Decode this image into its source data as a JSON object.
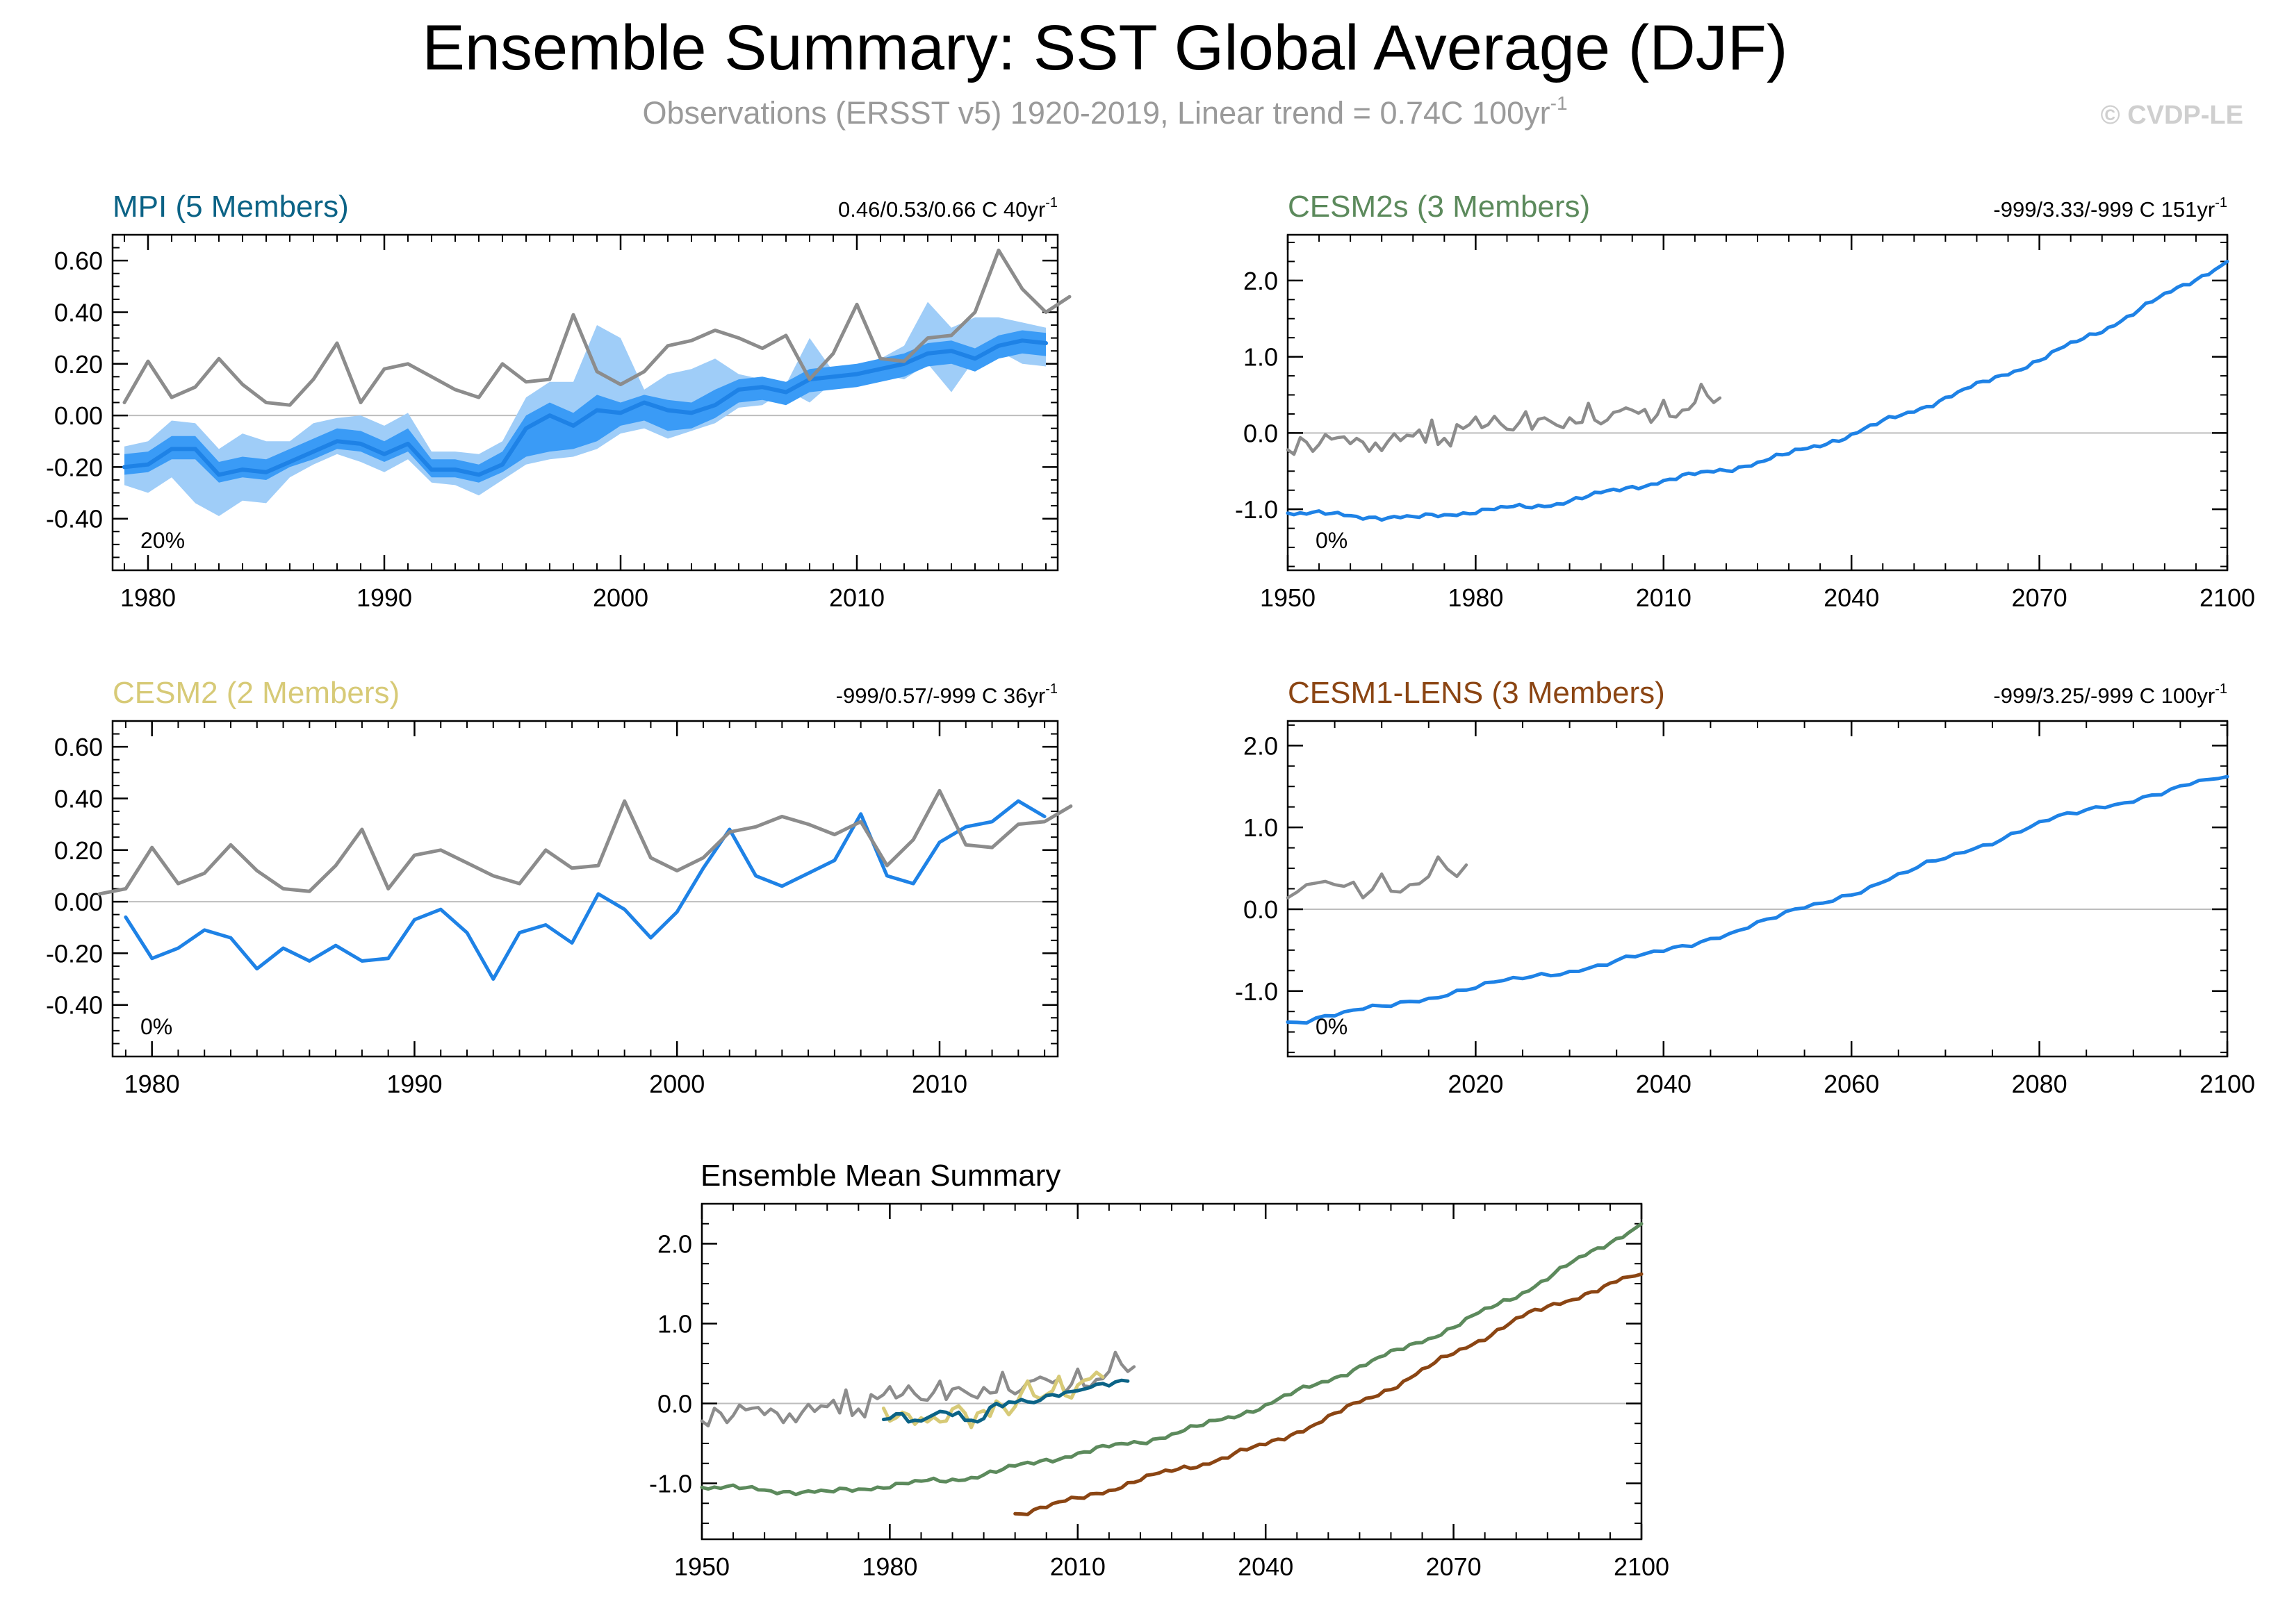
{
  "figure": {
    "title": "Ensemble Summary: SST Global Average (DJF)",
    "subtitle_main": "Observations (ERSST v5) 1920-2019, Linear trend = 0.74C 100yr",
    "subtitle_sup": "-1",
    "copyright": "© CVDP-LE"
  },
  "colors": {
    "obs": "#8c8c8c",
    "model_line": "#1e82e6",
    "band_inner": "#3a9bf6",
    "band_outer": "#9fcdf8",
    "MPI": "#0b6386",
    "CESM2s": "#5c8a5c",
    "CESM2": "#d7ca77",
    "CESM1-LENS": "#8b4513"
  },
  "chart_data": [
    {
      "id": "mpi",
      "type": "line",
      "title": "MPI (5 Members)",
      "title_color": "#0b6386",
      "trend_main": "0.46/0.53/0.66 C 40yr",
      "trend_sup": "-1",
      "percent_label": "20%",
      "xlim": [
        1978.5,
        2018.5
      ],
      "ylim": [
        -0.6,
        0.7
      ],
      "xticks": [
        1980,
        1990,
        2000,
        2010
      ],
      "yticks": [
        -0.4,
        -0.2,
        0.0,
        0.2,
        0.4,
        0.6
      ],
      "ytick_labels": [
        "-0.40",
        "-0.20",
        "0.00",
        "0.20",
        "0.40",
        "0.60"
      ],
      "obs": {
        "start": 1979,
        "values": [
          0.05,
          0.21,
          0.07,
          0.11,
          0.22,
          0.12,
          0.05,
          0.04,
          0.14,
          0.28,
          0.05,
          0.18,
          0.2,
          0.15,
          0.1,
          0.07,
          0.2,
          0.13,
          0.14,
          0.39,
          0.17,
          0.12,
          0.17,
          0.27,
          0.29,
          0.33,
          0.3,
          0.26,
          0.31,
          0.14,
          0.24,
          0.43,
          0.22,
          0.21,
          0.3,
          0.31,
          0.4,
          0.64,
          0.49,
          0.4,
          0.46
        ]
      },
      "model": {
        "start": 1979,
        "end": 2018,
        "mean": [
          -0.2,
          -0.19,
          -0.13,
          -0.13,
          -0.23,
          -0.21,
          -0.22,
          -0.18,
          -0.14,
          -0.1,
          -0.11,
          -0.15,
          -0.11,
          -0.21,
          -0.21,
          -0.23,
          -0.19,
          -0.05,
          0.0,
          -0.04,
          0.02,
          0.01,
          0.05,
          0.02,
          0.01,
          0.04,
          0.1,
          0.11,
          0.09,
          0.14,
          0.15,
          0.16,
          0.18,
          0.2,
          0.24,
          0.25,
          0.22,
          0.27,
          0.29,
          0.28
        ],
        "min_inner": [
          -0.23,
          -0.22,
          -0.17,
          -0.17,
          -0.26,
          -0.24,
          -0.25,
          -0.2,
          -0.17,
          -0.13,
          -0.14,
          -0.18,
          -0.14,
          -0.24,
          -0.24,
          -0.26,
          -0.22,
          -0.16,
          -0.14,
          -0.13,
          -0.1,
          -0.04,
          -0.02,
          -0.06,
          -0.05,
          -0.01,
          0.05,
          0.06,
          0.04,
          0.09,
          0.1,
          0.11,
          0.13,
          0.15,
          0.19,
          0.2,
          0.17,
          0.22,
          0.24,
          0.23
        ],
        "max_inner": [
          -0.15,
          -0.14,
          -0.08,
          -0.08,
          -0.18,
          -0.16,
          -0.17,
          -0.13,
          -0.09,
          -0.05,
          -0.06,
          -0.1,
          -0.05,
          -0.17,
          -0.17,
          -0.19,
          -0.14,
          0.0,
          0.05,
          0.01,
          0.08,
          0.05,
          0.08,
          0.06,
          0.05,
          0.1,
          0.14,
          0.15,
          0.13,
          0.18,
          0.19,
          0.2,
          0.22,
          0.24,
          0.28,
          0.29,
          0.26,
          0.31,
          0.33,
          0.32
        ],
        "min_outer": [
          -0.27,
          -0.3,
          -0.24,
          -0.34,
          -0.39,
          -0.33,
          -0.34,
          -0.24,
          -0.19,
          -0.15,
          -0.18,
          -0.22,
          -0.17,
          -0.26,
          -0.27,
          -0.31,
          -0.25,
          -0.19,
          -0.17,
          -0.16,
          -0.13,
          -0.07,
          -0.05,
          -0.09,
          -0.06,
          -0.03,
          0.03,
          0.04,
          0.1,
          0.05,
          0.13,
          0.14,
          0.16,
          0.14,
          0.2,
          0.09,
          0.22,
          0.25,
          0.2,
          0.19
        ],
        "max_outer": [
          -0.12,
          -0.1,
          -0.02,
          -0.03,
          -0.13,
          -0.07,
          -0.1,
          -0.1,
          -0.03,
          -0.01,
          0.0,
          -0.04,
          0.01,
          -0.14,
          -0.14,
          -0.15,
          -0.1,
          0.07,
          0.13,
          0.13,
          0.35,
          0.3,
          0.1,
          0.16,
          0.18,
          0.22,
          0.16,
          0.14,
          0.12,
          0.3,
          0.17,
          0.18,
          0.22,
          0.27,
          0.44,
          0.34,
          0.38,
          0.38,
          0.36,
          0.34
        ]
      }
    },
    {
      "id": "cesm2s",
      "type": "line",
      "title": "CESM2s (3 Members)",
      "title_color": "#5c8a5c",
      "trend_main": "-999/3.33/-999 C 151yr",
      "trend_sup": "-1",
      "percent_label": "0%",
      "xlim": [
        1950,
        2100
      ],
      "ylim": [
        -1.8,
        2.6
      ],
      "xticks": [
        1950,
        1980,
        2010,
        2040,
        2070,
        2100
      ],
      "yticks": [
        -1.0,
        0.0,
        1.0,
        2.0
      ],
      "ytick_labels": [
        "-1.0",
        "0.0",
        "1.0",
        "2.0"
      ],
      "obs": {
        "start": 1950,
        "values": [
          -0.22,
          -0.28,
          -0.06,
          -0.12,
          -0.24,
          -0.15,
          -0.02,
          -0.08,
          -0.06,
          -0.05,
          -0.14,
          -0.07,
          -0.12,
          -0.24,
          -0.13,
          -0.23,
          -0.11,
          -0.01,
          -0.1,
          -0.03,
          -0.04,
          0.04,
          -0.12,
          0.17,
          -0.15,
          -0.07,
          -0.17,
          0.11,
          0.06,
          0.11,
          0.21,
          0.07,
          0.11,
          0.22,
          0.12,
          0.05,
          0.04,
          0.14,
          0.28,
          0.05,
          0.18,
          0.2,
          0.15,
          0.1,
          0.07,
          0.2,
          0.13,
          0.14,
          0.39,
          0.17,
          0.12,
          0.17,
          0.27,
          0.29,
          0.33,
          0.3,
          0.26,
          0.31,
          0.14,
          0.24,
          0.43,
          0.22,
          0.21,
          0.3,
          0.31,
          0.4,
          0.64,
          0.49,
          0.4,
          0.46
        ]
      },
      "model_anchors": {
        "x": [
          1950,
          1960,
          1970,
          1980,
          1990,
          2000,
          2010,
          2020,
          2030,
          2040,
          2050,
          2060,
          2070,
          2080,
          2090,
          2100
        ],
        "y": [
          -1.05,
          -1.08,
          -1.12,
          -1.02,
          -0.96,
          -0.8,
          -0.62,
          -0.48,
          -0.28,
          -0.02,
          0.3,
          0.62,
          0.96,
          1.35,
          1.8,
          2.25
        ]
      },
      "model_noise": 0.05
    },
    {
      "id": "cesm2",
      "type": "line",
      "title": "CESM2 (2 Members)",
      "title_color": "#d7ca77",
      "trend_main": "-999/0.57/-999 C 36yr",
      "trend_sup": "-1",
      "percent_label": "0%",
      "xlim": [
        1978.5,
        2014.5
      ],
      "ylim": [
        -0.6,
        0.7
      ],
      "xticks": [
        1980,
        1990,
        2000,
        2010
      ],
      "yticks": [
        -0.4,
        -0.2,
        0.0,
        0.2,
        0.4,
        0.6
      ],
      "ytick_labels": [
        "-0.40",
        "-0.20",
        "0.00",
        "0.20",
        "0.40",
        "0.60"
      ],
      "obs": {
        "start": 1978,
        "values": [
          0.03,
          0.05,
          0.21,
          0.07,
          0.11,
          0.22,
          0.12,
          0.05,
          0.04,
          0.14,
          0.28,
          0.05,
          0.18,
          0.2,
          0.15,
          0.1,
          0.07,
          0.2,
          0.13,
          0.14,
          0.39,
          0.17,
          0.12,
          0.17,
          0.27,
          0.29,
          0.33,
          0.3,
          0.26,
          0.31,
          0.14,
          0.24,
          0.43,
          0.22,
          0.21,
          0.3,
          0.31,
          0.37
        ]
      },
      "model": {
        "start": 1979,
        "values": [
          -0.06,
          -0.22,
          -0.18,
          -0.11,
          -0.14,
          -0.26,
          -0.18,
          -0.23,
          -0.17,
          -0.23,
          -0.22,
          -0.07,
          -0.03,
          -0.12,
          -0.3,
          -0.12,
          -0.09,
          -0.16,
          0.03,
          -0.03,
          -0.14,
          -0.04,
          0.13,
          0.28,
          0.1,
          0.06,
          0.11,
          0.16,
          0.34,
          0.1,
          0.07,
          0.23,
          0.29,
          0.31,
          0.39,
          0.33
        ]
      }
    },
    {
      "id": "cesm1",
      "type": "line",
      "title": "CESM1-LENS (3 Members)",
      "title_color": "#8b4513",
      "trend_main": "-999/3.25/-999 C 100yr",
      "trend_sup": "-1",
      "percent_label": "0%",
      "xlim": [
        2000,
        2100
      ],
      "ylim": [
        -1.8,
        2.3
      ],
      "xticks": [
        2020,
        2040,
        2060,
        2080,
        2100
      ],
      "yticks": [
        -1.0,
        0.0,
        1.0,
        2.0
      ],
      "ytick_labels": [
        "-1.0",
        "0.0",
        "1.0",
        "2.0"
      ],
      "obs": {
        "start": 2000,
        "values": [
          0.14,
          0.21,
          0.3,
          0.32,
          0.34,
          0.3,
          0.28,
          0.33,
          0.14,
          0.24,
          0.43,
          0.22,
          0.21,
          0.3,
          0.31,
          0.4,
          0.64,
          0.49,
          0.4,
          0.54
        ]
      },
      "model_anchors": {
        "x": [
          2000,
          2010,
          2020,
          2030,
          2040,
          2050,
          2060,
          2070,
          2080,
          2090,
          2100
        ],
        "y": [
          -1.38,
          -1.2,
          -0.95,
          -0.75,
          -0.52,
          -0.18,
          0.2,
          0.62,
          1.05,
          1.35,
          1.62
        ]
      },
      "model_noise": 0.05
    },
    {
      "id": "summary",
      "type": "line",
      "title": "Ensemble Mean Summary",
      "title_color": "#000000",
      "xlim": [
        1950,
        2100
      ],
      "ylim": [
        -1.7,
        2.5
      ],
      "xticks": [
        1950,
        1980,
        2010,
        2040,
        2070,
        2100
      ],
      "yticks": [
        -1.0,
        0.0,
        1.0,
        2.0
      ],
      "ytick_labels": [
        "-1.0",
        "0.0",
        "1.0",
        "2.0"
      ]
    }
  ]
}
